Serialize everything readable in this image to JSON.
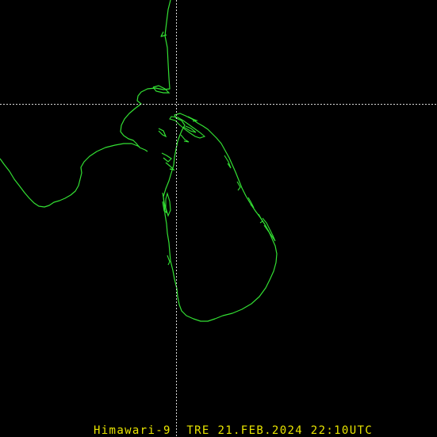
{
  "caption": "Himawari-9  TRE 21.FEB.2024 22:10UTC",
  "colors": {
    "background": "#000000",
    "coastline": "#33e033",
    "crosshair": "#d8d8d8",
    "caption": "#e8e400"
  },
  "layers": [
    "coastline-sri-lanka",
    "coastline-south-india",
    "lat-lon-crosshair"
  ]
}
